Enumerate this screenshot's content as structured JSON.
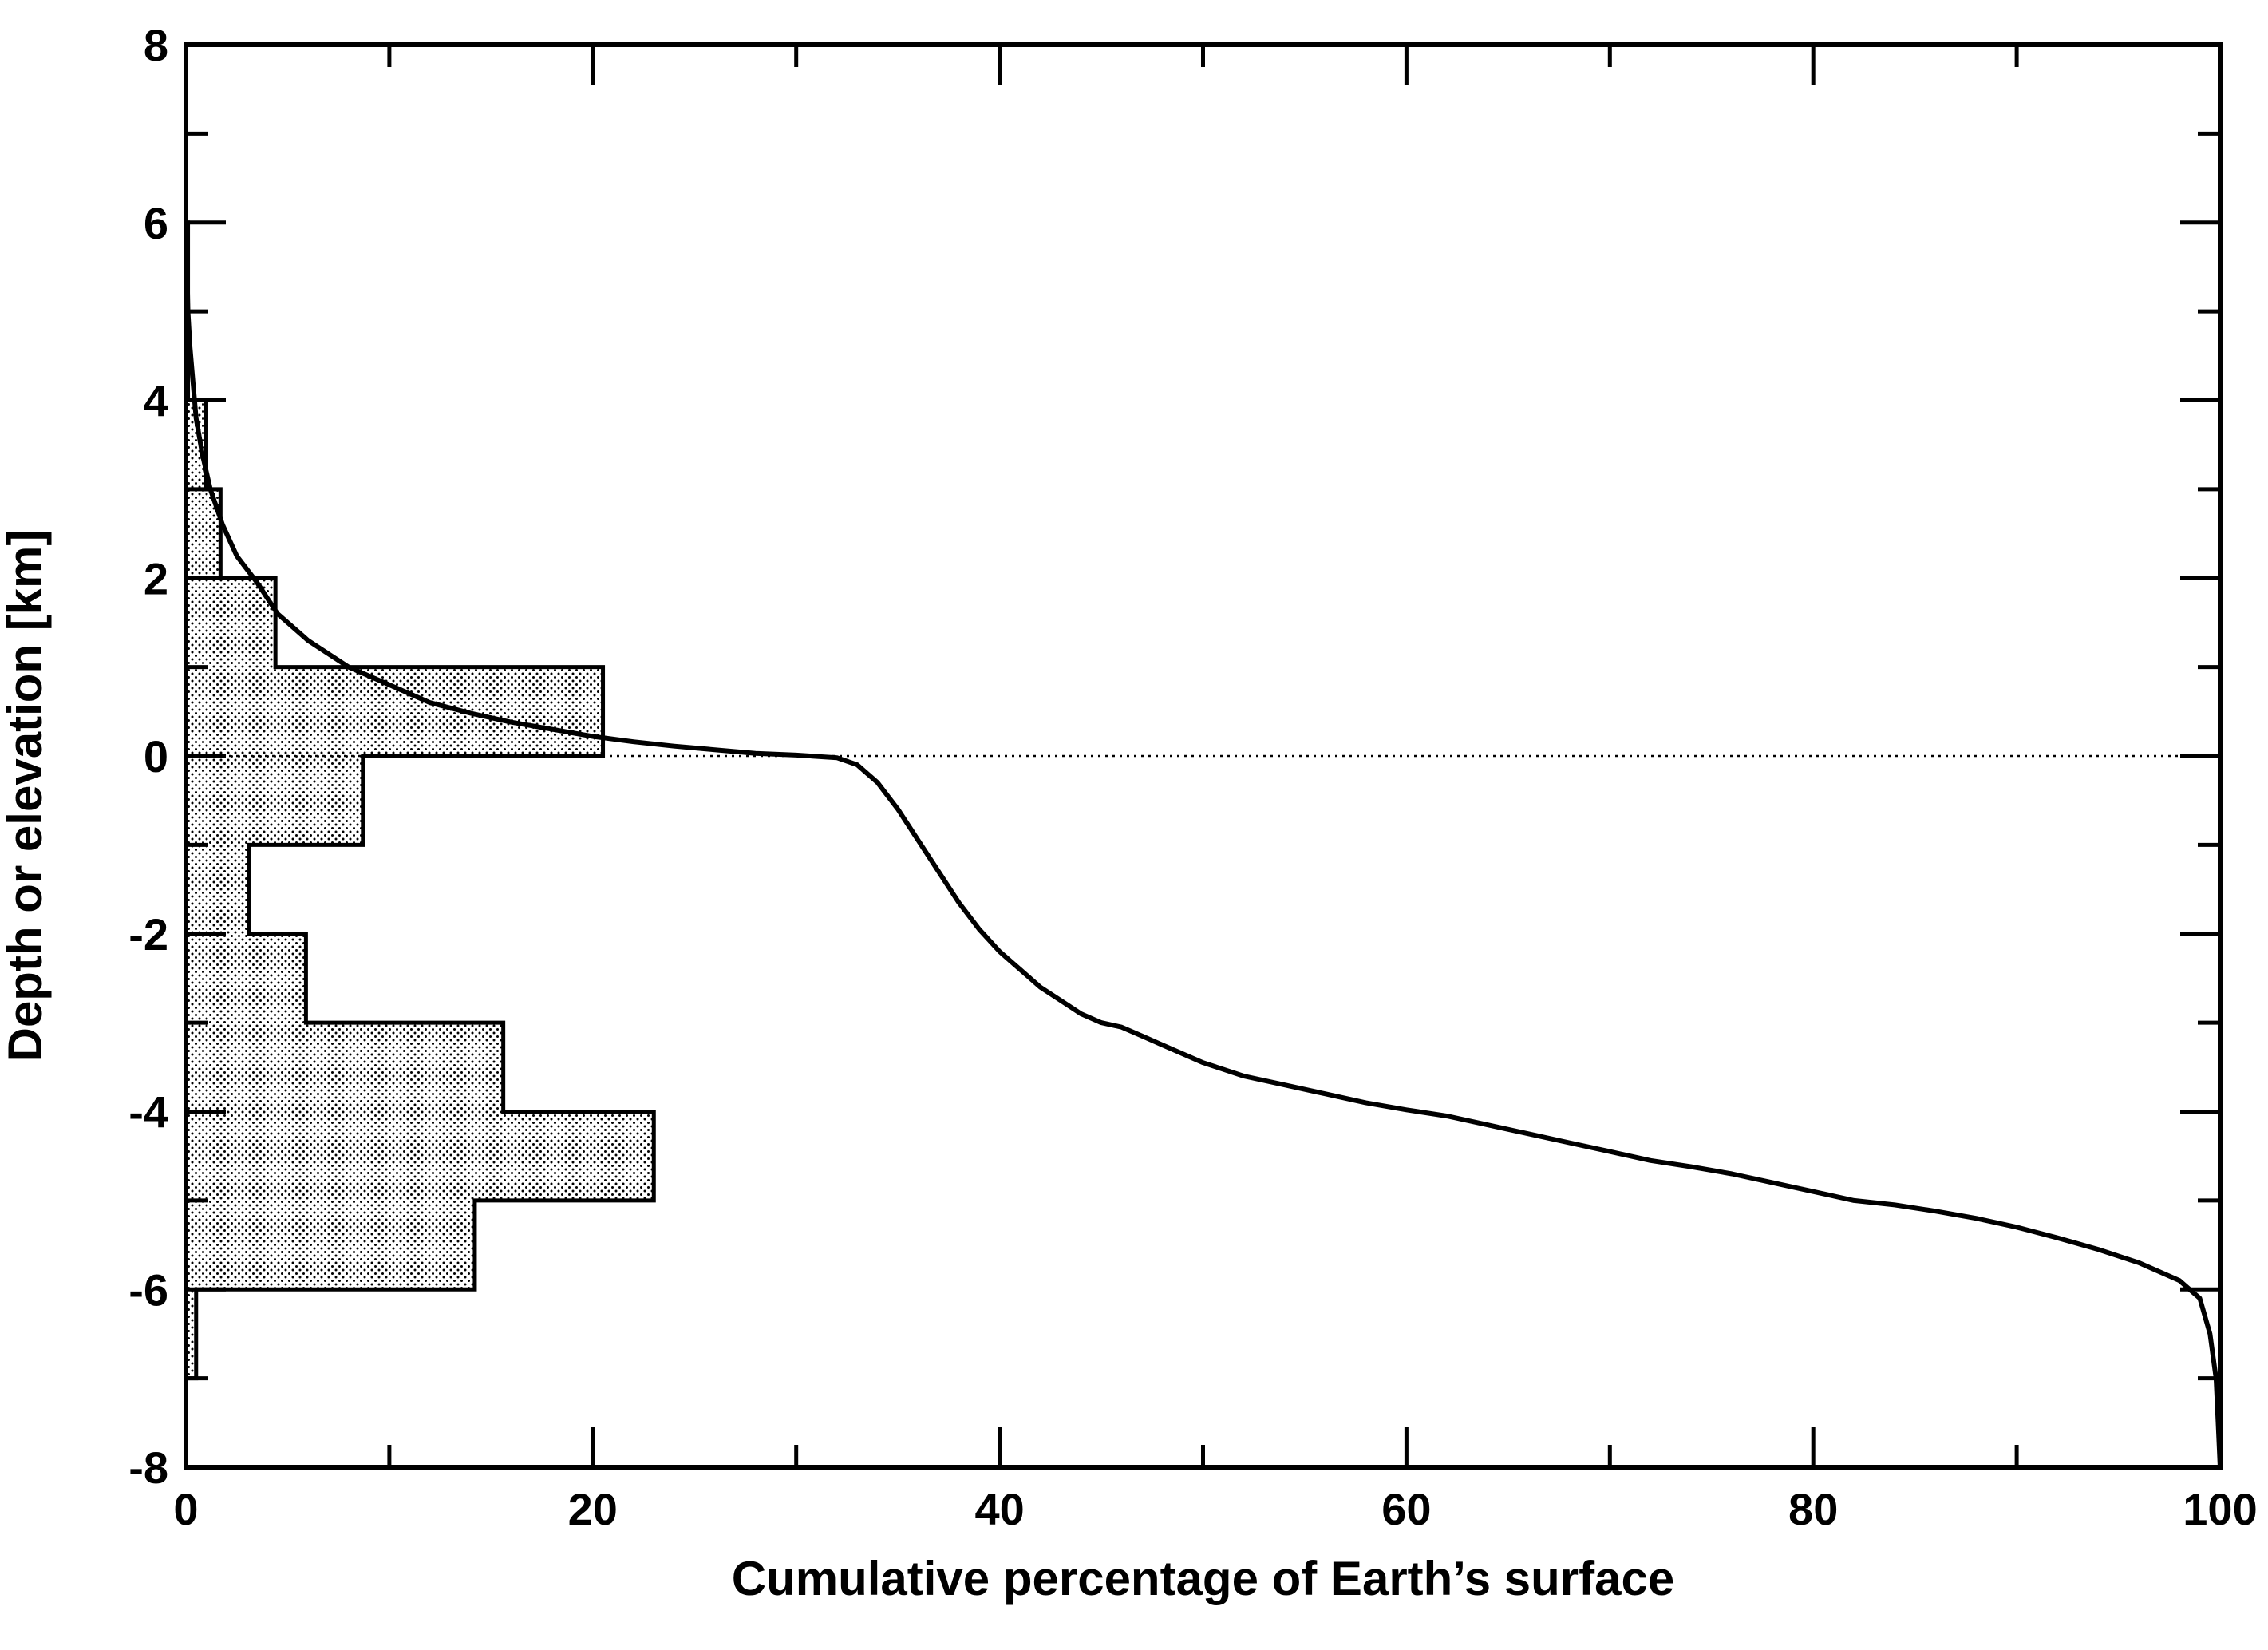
{
  "chart_data": {
    "type": "line",
    "xlabel": "Cumulative percentage of Earth’s surface",
    "ylabel": "Depth or elevation [km]",
    "xlim": [
      0,
      100
    ],
    "ylim": [
      -8,
      8
    ],
    "xticks": [
      0,
      20,
      40,
      60,
      80,
      100
    ],
    "yticks": [
      -8,
      -6,
      -4,
      -2,
      0,
      2,
      4,
      6,
      8
    ],
    "x_tick_labels": [
      "0",
      "20",
      "40",
      "60",
      "80",
      "100"
    ],
    "y_tick_labels": [
      "-8",
      "-6",
      "-4",
      "-2",
      "0",
      "2",
      "4",
      "6",
      "8"
    ],
    "grid": false,
    "legend": "none",
    "reference_line": {
      "y": 0,
      "style": "dotted"
    },
    "histogram": {
      "bin_width_km": 1,
      "bins": [
        {
          "y_low": -7,
          "y_high": -6,
          "percent": 0.5
        },
        {
          "y_low": -6,
          "y_high": -5,
          "percent": 14.2
        },
        {
          "y_low": -5,
          "y_high": -4,
          "percent": 23.0
        },
        {
          "y_low": -4,
          "y_high": -3,
          "percent": 15.6
        },
        {
          "y_low": -3,
          "y_high": -2,
          "percent": 5.9
        },
        {
          "y_low": -2,
          "y_high": -1,
          "percent": 3.1
        },
        {
          "y_low": -1,
          "y_high": 0,
          "percent": 8.7
        },
        {
          "y_low": 0,
          "y_high": 1,
          "percent": 20.5
        },
        {
          "y_low": 1,
          "y_high": 2,
          "percent": 4.4
        },
        {
          "y_low": 2,
          "y_high": 3,
          "percent": 1.7
        },
        {
          "y_low": 3,
          "y_high": 4,
          "percent": 1.0
        },
        {
          "y_low": 4,
          "y_high": 6,
          "percent": 0.1
        }
      ]
    },
    "series": [
      {
        "x": [
          0,
          0.05,
          0.1,
          0.2,
          0.35,
          0.5,
          0.8,
          1.2,
          1.8,
          2.5,
          3.5,
          4.5,
          6,
          8,
          10,
          12,
          14,
          16,
          18,
          20,
          22,
          24,
          26,
          28,
          30,
          32,
          33,
          34,
          35,
          36,
          37,
          38,
          39,
          40,
          41,
          42,
          43,
          44,
          45,
          46,
          47,
          48,
          50,
          52,
          54,
          56,
          58,
          60,
          62,
          64,
          66,
          68,
          70,
          72,
          74,
          76,
          78,
          80,
          82,
          84,
          86,
          88,
          90,
          92,
          94,
          96,
          98,
          99,
          99.5,
          99.8,
          99.9,
          100
        ],
        "y": [
          6.0,
          5.5,
          5.0,
          4.6,
          4.2,
          3.8,
          3.4,
          3.0,
          2.6,
          2.25,
          1.95,
          1.6,
          1.3,
          1.0,
          0.8,
          0.6,
          0.48,
          0.38,
          0.3,
          0.22,
          0.16,
          0.11,
          0.07,
          0.03,
          0.01,
          -0.02,
          -0.1,
          -0.3,
          -0.6,
          -0.95,
          -1.3,
          -1.65,
          -1.95,
          -2.2,
          -2.4,
          -2.6,
          -2.75,
          -2.9,
          -3.0,
          -3.05,
          -3.15,
          -3.25,
          -3.45,
          -3.6,
          -3.7,
          -3.8,
          -3.9,
          -3.98,
          -4.05,
          -4.15,
          -4.25,
          -4.35,
          -4.45,
          -4.55,
          -4.62,
          -4.7,
          -4.8,
          -4.9,
          -5.0,
          -5.05,
          -5.12,
          -5.2,
          -5.3,
          -5.42,
          -5.55,
          -5.7,
          -5.9,
          -6.1,
          -6.5,
          -7.0,
          -7.5,
          -8.0
        ]
      }
    ]
  }
}
